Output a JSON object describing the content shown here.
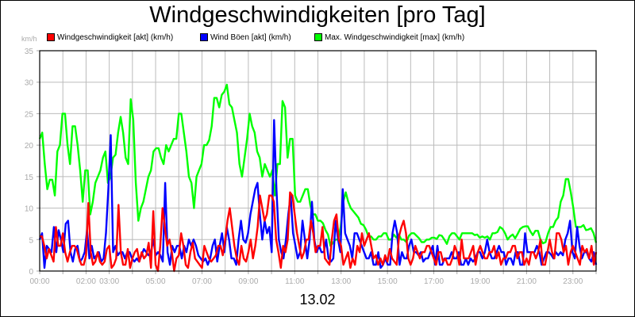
{
  "header": {
    "title": "Windgeschwindigkeiten [pro Tag]",
    "unit_label": "km/h",
    "date_label": "13.02"
  },
  "legend": [
    {
      "label": "Windgeschwindigkeit [akt] (km/h)",
      "color": "#ff0000"
    },
    {
      "label": "Wind Böen [akt] (km/h)",
      "color": "#0000ff"
    },
    {
      "label": "Max. Windgeschwindigkeit [max] (km/h)",
      "color": "#00ff00"
    }
  ],
  "chart_data": {
    "type": "line",
    "title": "Windgeschwindigkeiten [pro Tag]",
    "xlabel": "13.02",
    "ylabel": "km/h",
    "ylim": [
      0,
      35
    ],
    "xlim_hours": [
      0,
      24
    ],
    "grid": true,
    "legend_position": "top",
    "y_ticks": [
      "0",
      "5",
      "10",
      "15",
      "20",
      "25",
      "30",
      "35"
    ],
    "x_tick_labels": [
      {
        "hour": 0,
        "label": "00:00"
      },
      {
        "hour": 2,
        "label": "02:00"
      },
      {
        "hour": 3,
        "label": "03:00"
      },
      {
        "hour": 5,
        "label": "05:00"
      },
      {
        "hour": 7,
        "label": "07:00"
      },
      {
        "hour": 9,
        "label": "09:00"
      },
      {
        "hour": 11,
        "label": "11:00"
      },
      {
        "hour": 13,
        "label": "13:00"
      },
      {
        "hour": 15,
        "label": "15:00"
      },
      {
        "hour": 17,
        "label": "17:00"
      },
      {
        "hour": 19,
        "label": "19:00"
      },
      {
        "hour": 21,
        "label": "21:00"
      },
      {
        "hour": 23,
        "label": "23:00"
      }
    ],
    "x_step_hours": 0.1667,
    "series": [
      {
        "name": "Max. Windgeschwindigkeit [max] (km/h)",
        "color": "#00ff00",
        "values": [
          21,
          22,
          17,
          13,
          14.5,
          14.5,
          12,
          19,
          20,
          25,
          25,
          20,
          17,
          23,
          23,
          20,
          16,
          11,
          16,
          16,
          9,
          11,
          14,
          15,
          16,
          18,
          19,
          14,
          15,
          18,
          18.5,
          22,
          24.5,
          22,
          18,
          17,
          27.3,
          24,
          14,
          8,
          10,
          11,
          13,
          15,
          16,
          19,
          19.5,
          19.5,
          18,
          17,
          20,
          19,
          20,
          21,
          21,
          25,
          25,
          22,
          19,
          15,
          14,
          10,
          15,
          16,
          17,
          20,
          20,
          20.8,
          23,
          27.5,
          27.5,
          26,
          28,
          28.5,
          29.6,
          26.5,
          26,
          24,
          22,
          17,
          15,
          18,
          21,
          25,
          23,
          22,
          19,
          18,
          15,
          17,
          16,
          15,
          16,
          12,
          17,
          17,
          27,
          26,
          18,
          21,
          21,
          12,
          11,
          11,
          12,
          13,
          13,
          10.5,
          9,
          9,
          8,
          8,
          7.6,
          6.5,
          5.8,
          4,
          4.5,
          5,
          5,
          7,
          11,
          12.5,
          11,
          10,
          9.5,
          9,
          8.5,
          7.5,
          7.3,
          6.6,
          5.5,
          5.5,
          5,
          5,
          5.5,
          5.5,
          6,
          6,
          5,
          5,
          5.8,
          5.3,
          5.8,
          5,
          5,
          4.6,
          5.6,
          6,
          6,
          5.6,
          5.2,
          4.6,
          4.6,
          5,
          5,
          5.3,
          5.3,
          5.1,
          5.7,
          5.6,
          5,
          4.3,
          5.5,
          6,
          6,
          5.5,
          5,
          6,
          6,
          6,
          6,
          6,
          5.7,
          5.8,
          5.3,
          5.5,
          5.3,
          5.5,
          5,
          6,
          6,
          6.2,
          7,
          6.7,
          6,
          5,
          5.5,
          5.8,
          5.2,
          5.9,
          6.7,
          7,
          7.1,
          7.1,
          6.3,
          5.7,
          6.4,
          6.4,
          5,
          4.4,
          4.6,
          6,
          7,
          7,
          8,
          8.5,
          11,
          12,
          14.6,
          14.6,
          12.5,
          10,
          7,
          7,
          7,
          7.3,
          6.5,
          6.6,
          6.8,
          6,
          4.5
        ],
        "note": "approximate, read from pixels at ~10 min resolution"
      },
      {
        "name": "Wind Böen [akt] (km/h)",
        "color": "#0000ff",
        "values": [
          5,
          6,
          0.5,
          4,
          3.5,
          3,
          7,
          3,
          6.5,
          5,
          3,
          7.5,
          8,
          3,
          1.5,
          3.5,
          4,
          1.5,
          2,
          3,
          6.5,
          2,
          4,
          2,
          2.5,
          3,
          1.5,
          2,
          6,
          13,
          21.6,
          3,
          4,
          2.5,
          3,
          3,
          2,
          3,
          3,
          2,
          1.5,
          2,
          1.5,
          2.5,
          3.5,
          3,
          2.5,
          3,
          5,
          2.5,
          3,
          2.5,
          1.5,
          14,
          3,
          1,
          4,
          3,
          4,
          4,
          2,
          4,
          3,
          5,
          4,
          5,
          4,
          2.5,
          2,
          1.5,
          2,
          1,
          2,
          4,
          5,
          1.5,
          4,
          6,
          3,
          7,
          5,
          2,
          2,
          1,
          5,
          8,
          5,
          4.5,
          6,
          9,
          11,
          13,
          14,
          9,
          5,
          8,
          6,
          7,
          3,
          24,
          13,
          5,
          3,
          2,
          5,
          9,
          12,
          6,
          4,
          2,
          3,
          8,
          5,
          2,
          5,
          11,
          5,
          3,
          4,
          3,
          3,
          5,
          2,
          1.5,
          2,
          8,
          5,
          3,
          13,
          6,
          5,
          4,
          2,
          6,
          6,
          5,
          4,
          3,
          2,
          2,
          3,
          1,
          1,
          3,
          0.5,
          1,
          2,
          1,
          1,
          6,
          8,
          6,
          1,
          3,
          2,
          2,
          4,
          5,
          3,
          3,
          2.5,
          3,
          1.5,
          2,
          2,
          3,
          4,
          1,
          4,
          1,
          1,
          2,
          2,
          2,
          3,
          2,
          2,
          3,
          1,
          1,
          2,
          1,
          2,
          1.5,
          2,
          3,
          3,
          2,
          3,
          5,
          3,
          2,
          2,
          3,
          4,
          3,
          3,
          1,
          2,
          2,
          1,
          3,
          3,
          1,
          1,
          6,
          3,
          3,
          3,
          3,
          4,
          3,
          1,
          2,
          3,
          3,
          2.6,
          2,
          3,
          2.5,
          3,
          2.5,
          5,
          6,
          8,
          3,
          2,
          7,
          4,
          2,
          3,
          3,
          2,
          1.5,
          3,
          1
        ],
        "note": "approximate, read from pixels at ~10 min resolution"
      },
      {
        "name": "Windgeschwindigkeit [akt] (km/h)",
        "color": "#ff0000",
        "values": [
          5.5,
          5.5,
          4,
          2,
          3.5,
          2.5,
          1.5,
          7,
          4,
          4,
          6,
          3,
          1.5,
          3,
          4,
          4,
          3.5,
          2,
          1,
          1,
          2.5,
          10.8,
          3,
          1,
          1.5,
          3,
          1.5,
          1,
          1.5,
          3.5,
          4,
          0.5,
          1,
          2,
          10.5,
          3,
          1,
          1,
          3.5,
          0.5,
          2,
          3,
          3.5,
          1.5,
          3,
          2,
          2.5,
          4.5,
          0.5,
          9.5,
          1,
          0,
          4,
          10,
          7,
          4,
          5,
          3,
          0,
          2,
          2.5,
          6,
          4,
          1,
          0.5,
          3,
          4.5,
          2,
          1.5,
          1,
          0.5,
          4,
          3,
          2,
          1.5,
          2,
          2.5,
          4,
          4,
          2.5,
          5,
          8,
          10,
          7,
          4,
          2,
          1,
          4,
          2,
          1.5,
          3,
          5,
          2,
          4,
          7,
          12,
          10,
          8,
          9,
          12,
          12,
          11,
          5,
          3,
          0.5,
          4,
          3,
          5,
          12.5,
          12,
          9,
          6,
          4,
          2,
          3,
          5,
          5,
          8,
          6,
          3,
          4,
          4,
          7,
          2,
          1.5,
          1,
          5,
          8,
          9,
          5,
          4,
          1,
          2,
          3,
          0.5,
          2,
          1,
          4,
          3,
          6,
          4,
          5,
          6,
          4,
          2,
          2.5,
          1,
          2,
          1,
          2.5,
          1.5,
          3.5,
          2,
          1.5,
          1,
          5.5,
          7,
          8,
          6,
          2,
          1,
          2,
          4,
          3,
          2,
          3,
          3,
          4,
          4,
          3,
          2,
          1,
          3,
          3,
          1.5,
          2,
          1,
          1,
          2,
          4,
          3,
          1,
          5,
          2,
          2,
          2,
          3,
          4,
          1,
          3,
          4,
          3,
          2,
          2,
          3,
          3,
          4,
          2,
          3,
          1,
          2,
          2,
          3,
          3,
          4,
          4,
          2,
          3,
          3,
          1,
          2,
          1,
          3,
          3,
          2,
          3,
          5,
          1,
          1,
          3,
          5,
          3,
          2,
          6,
          6,
          5,
          3,
          4,
          1,
          3,
          4,
          3,
          2,
          1,
          4,
          3,
          3.5,
          2,
          4,
          1,
          3
        ],
        "note": "approximate, read from pixels at ~10 min resolution"
      }
    ]
  }
}
